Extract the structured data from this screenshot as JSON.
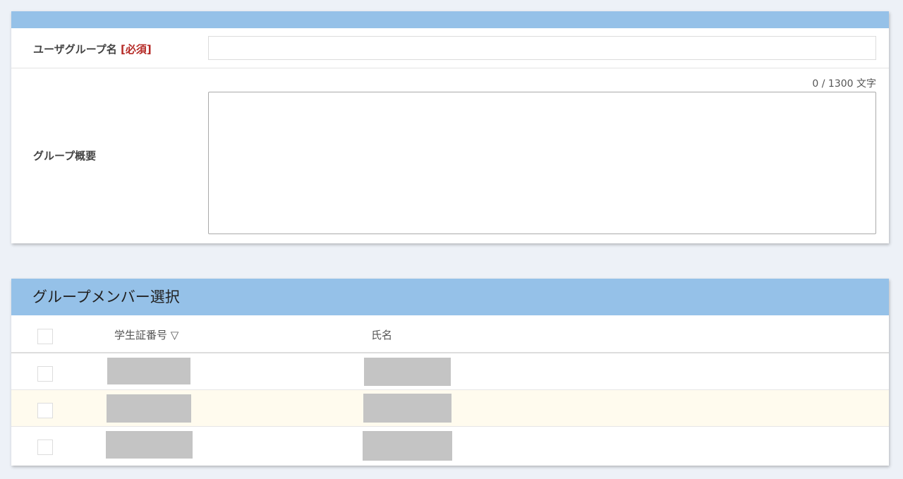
{
  "form": {
    "name_label": "ユーザグループ名",
    "required_label": "[必須]",
    "name_value": "",
    "summary_label": "グループ概要",
    "summary_value": "",
    "counter": "0 / 1300 文字"
  },
  "members": {
    "title": "グループメンバー選択",
    "columns": [
      "学生証番号 ▽",
      "氏名"
    ],
    "rows": [
      {
        "redacted": true
      },
      {
        "redacted": true
      },
      {
        "redacted": true
      }
    ]
  },
  "colors": {
    "header_bar": "#95c1e8",
    "required": "#b52a26",
    "row_highlight": "#fffbee"
  }
}
